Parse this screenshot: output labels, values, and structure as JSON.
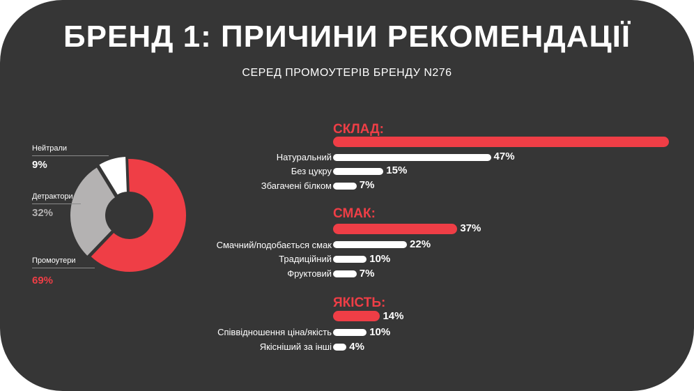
{
  "title": "БРЕНД 1: ПРИЧИНИ РЕКОМЕНДАЦІЇ",
  "subtitle": "СЕРЕД ПРОМОУТЕРІВ БРЕНДУ N276",
  "colors": {
    "background": "#363636",
    "accent": "#ef3e46",
    "detractors": "#b4b2b2",
    "neutrals": "#ffffff"
  },
  "chart_data": [
    {
      "type": "pie",
      "series": [
        {
          "name": "Нейтрали",
          "label": "9%",
          "value": 9,
          "color": "#ffffff"
        },
        {
          "name": "Детрактори",
          "label": "32%",
          "value": 32,
          "color": "#b4b2b2"
        },
        {
          "name": "Промоутери",
          "label": "69%",
          "value": 69,
          "color": "#ef3e46"
        }
      ]
    },
    {
      "type": "bar",
      "orientation": "horizontal",
      "groups": [
        {
          "name": "СКЛАД:",
          "value": 100,
          "label": "",
          "items": [
            {
              "name": "Натуральний",
              "value": 47,
              "label": "47%"
            },
            {
              "name": "Без цукру",
              "value": 15,
              "label": "15%"
            },
            {
              "name": "Збагачені білком",
              "value": 7,
              "label": "7%"
            }
          ]
        },
        {
          "name": "СМАК:",
          "value": 37,
          "label": "37%",
          "items": [
            {
              "name": "Смачний/подобається смак",
              "value": 22,
              "label": "22%"
            },
            {
              "name": "Традиційний",
              "value": 10,
              "label": "10%"
            },
            {
              "name": "Фруктовий",
              "value": 7,
              "label": "7%"
            }
          ]
        },
        {
          "name": "ЯКІСТЬ:",
          "value": 14,
          "label": "14%",
          "items": [
            {
              "name": "Співвідношення ціна/якість",
              "value": 10,
              "label": "10%"
            },
            {
              "name": "Якісніший за інші",
              "value": 4,
              "label": "4%"
            }
          ]
        }
      ]
    }
  ]
}
